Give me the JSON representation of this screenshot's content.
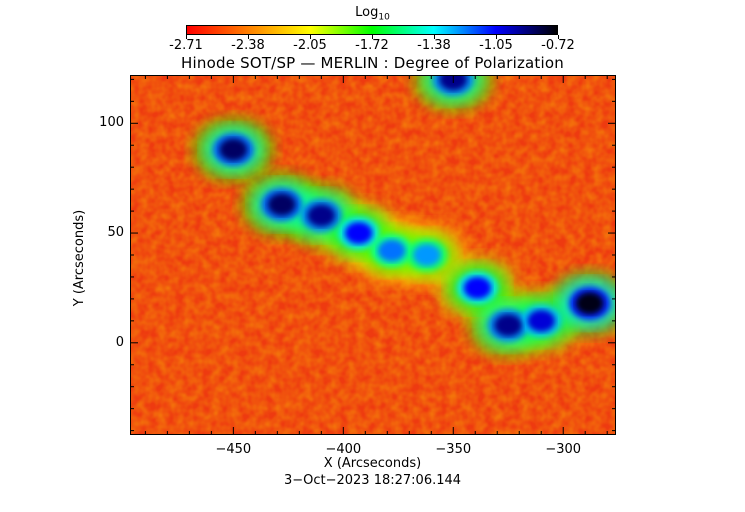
{
  "colorbar": {
    "title_main": "Log",
    "title_sub": "10",
    "ticks": [
      "-2.71",
      "-2.38",
      "-2.05",
      "-1.72",
      "-1.38",
      "-1.05",
      "-0.72"
    ],
    "range": [
      -2.71,
      -0.72
    ],
    "colors": [
      "#ff0000",
      "#ff8000",
      "#ffff00",
      "#00ff00",
      "#00ffff",
      "#0000ff",
      "#000000"
    ]
  },
  "chart_data": {
    "type": "heatmap",
    "title": "Hinode SOT/SP — MERLIN : Degree of Polarization",
    "xlabel": "X (Arcseconds)",
    "ylabel": "Y (Arcseconds)",
    "xlim": [
      -497,
      -276
    ],
    "ylim": [
      -42,
      122
    ],
    "xticks": [
      -450,
      -400,
      -350,
      -300
    ],
    "xtick_labels": [
      "−450",
      "−400",
      "−350",
      "−300"
    ],
    "yticks": [
      0,
      50,
      100
    ],
    "ytick_labels": [
      "0",
      "50",
      "100"
    ],
    "value_range": [
      -2.71,
      -0.72
    ],
    "strong_regions": [
      {
        "x": -450,
        "y": 88,
        "v": -0.85
      },
      {
        "x": -428,
        "y": 63,
        "v": -0.85
      },
      {
        "x": -410,
        "y": 58,
        "v": -0.9
      },
      {
        "x": -393,
        "y": 50,
        "v": -1.05
      },
      {
        "x": -378,
        "y": 42,
        "v": -1.2
      },
      {
        "x": -362,
        "y": 40,
        "v": -1.25
      },
      {
        "x": -350,
        "y": 120,
        "v": -0.9
      },
      {
        "x": -339,
        "y": 25,
        "v": -1.05
      },
      {
        "x": -325,
        "y": 8,
        "v": -0.9
      },
      {
        "x": -310,
        "y": 10,
        "v": -1.0
      },
      {
        "x": -288,
        "y": 18,
        "v": -0.75
      }
    ]
  },
  "timestamp": "3−Oct−2023 18:27:06.144"
}
